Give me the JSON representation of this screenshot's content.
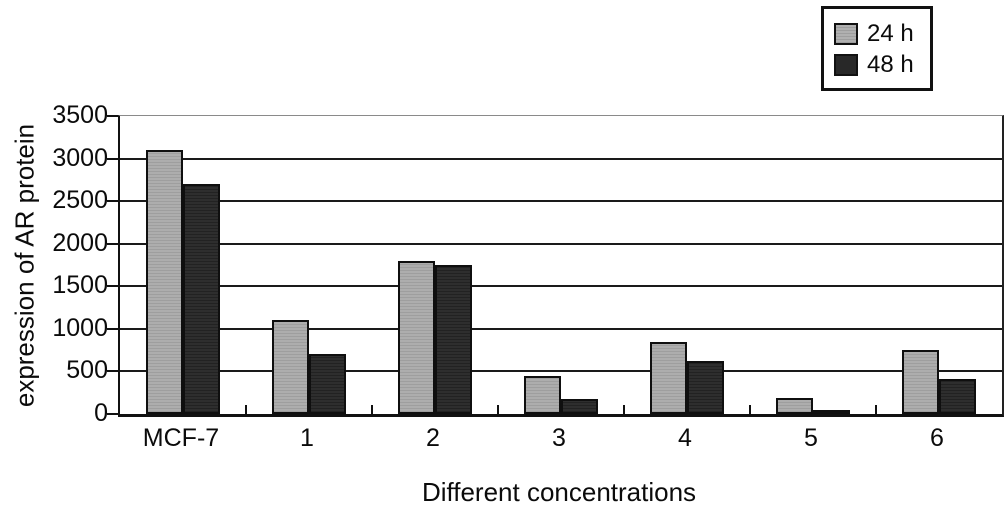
{
  "chart_data": {
    "type": "bar",
    "categories": [
      "MCF-7",
      "1",
      "2",
      "3",
      "4",
      "5",
      "6"
    ],
    "series": [
      {
        "name": "24 h",
        "color": "#a6a6a6",
        "values": [
          3100,
          1100,
          1800,
          450,
          850,
          190,
          750
        ]
      },
      {
        "name": "48 h",
        "color": "#282828",
        "values": [
          2700,
          700,
          1750,
          180,
          620,
          50,
          410
        ]
      }
    ],
    "title": "",
    "xlabel": "Different concentrations",
    "ylabel": "expression of AR protein",
    "ylim": [
      0,
      3500
    ],
    "ytick_step": 500,
    "ytick_labels": [
      "0",
      "500",
      "1000",
      "1500",
      "2000",
      "2500",
      "3000",
      "3500"
    ],
    "grid": true,
    "legend_position": "top-right"
  },
  "colors": {
    "axis": "#111111",
    "gridline": "#1a1a1a",
    "top_gridline": "#8a8a8a",
    "bar_border": "#0f0f0f",
    "background": "#ffffff"
  }
}
